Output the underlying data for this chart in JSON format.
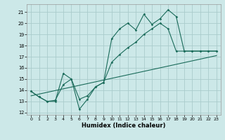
{
  "xlabel": "Humidex (Indice chaleur)",
  "xlim": [
    -0.5,
    23.5
  ],
  "ylim": [
    11.8,
    21.7
  ],
  "yticks": [
    12,
    13,
    14,
    15,
    16,
    17,
    18,
    19,
    20,
    21
  ],
  "xticks": [
    0,
    1,
    2,
    3,
    4,
    5,
    6,
    7,
    8,
    9,
    10,
    11,
    12,
    13,
    14,
    15,
    16,
    17,
    18,
    19,
    20,
    21,
    22,
    23
  ],
  "bg_color": "#cce8e8",
  "grid_color": "#aacccc",
  "line_color": "#1a6b5a",
  "line1_x": [
    0,
    1,
    2,
    3,
    4,
    5,
    6,
    7,
    8,
    9,
    10,
    11,
    12,
    13,
    14,
    15,
    16,
    17,
    18,
    19,
    20,
    21,
    22,
    23
  ],
  "line1_y": [
    13.9,
    13.4,
    13.0,
    13.0,
    15.5,
    15.0,
    12.3,
    13.2,
    14.3,
    14.7,
    18.6,
    19.5,
    20.0,
    19.4,
    20.8,
    19.9,
    20.4,
    21.2,
    20.6,
    17.5,
    17.5,
    17.5,
    17.5,
    17.5
  ],
  "line2_x": [
    0,
    1,
    2,
    3,
    4,
    5,
    6,
    7,
    8,
    9,
    10,
    11,
    12,
    13,
    14,
    15,
    16,
    17,
    18,
    19,
    20,
    21,
    22,
    23
  ],
  "line2_y": [
    13.9,
    13.4,
    13.0,
    13.1,
    14.5,
    15.0,
    13.2,
    13.5,
    14.3,
    14.7,
    16.5,
    17.2,
    17.8,
    18.3,
    19.0,
    19.5,
    20.0,
    19.5,
    17.5,
    17.5,
    17.5,
    17.5,
    17.5,
    17.5
  ],
  "line3_x": [
    0,
    23
  ],
  "line3_y": [
    13.5,
    17.1
  ]
}
